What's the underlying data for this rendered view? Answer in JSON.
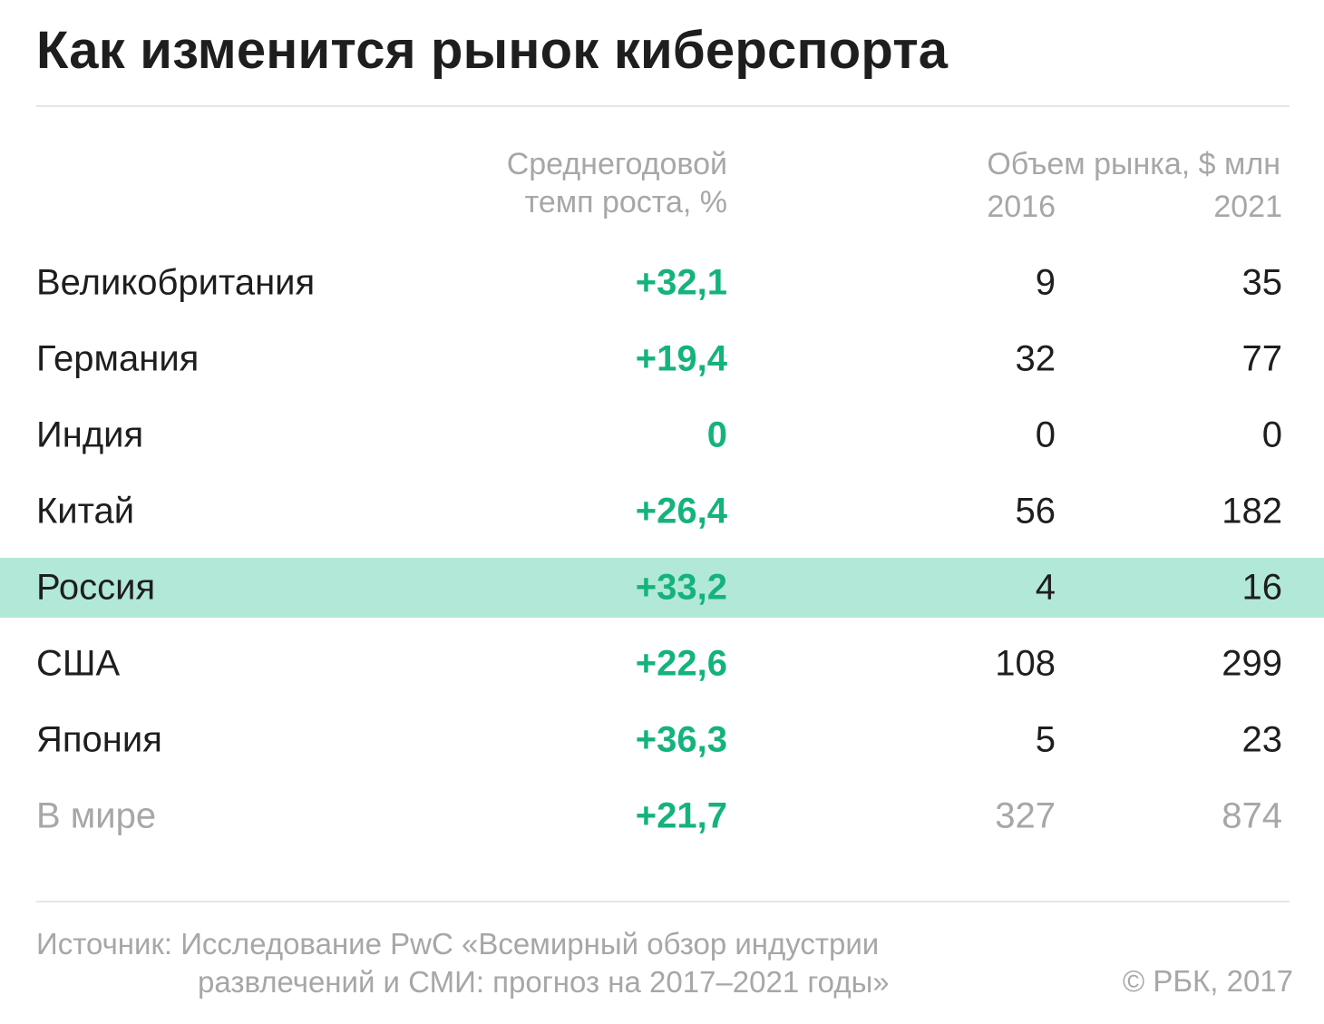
{
  "title": "Как изменится рынок киберспорта",
  "headers": {
    "growth_line1": "Среднегодовой",
    "growth_line2": "темп роста, %",
    "volume": "Объем рынка, $ млн",
    "year_a": "2016",
    "year_b": "2021"
  },
  "colors": {
    "growth_text": "#14b37d",
    "highlight_row": "#b2e8d7",
    "muted_text": "#a7a7a7",
    "main_text": "#1e1e1e"
  },
  "chart_data": {
    "type": "table",
    "title": "Как изменится рынок киберспорта",
    "columns": [
      "",
      "Среднегодовой темп роста, %",
      "2016",
      "2021"
    ],
    "rows": [
      {
        "country": "Великобритания",
        "growth": "+32,1",
        "v2016": "9",
        "v2021": "35",
        "highlight": false,
        "muted": false
      },
      {
        "country": "Германия",
        "growth": "+19,4",
        "v2016": "32",
        "v2021": "77",
        "highlight": false,
        "muted": false
      },
      {
        "country": "Индия",
        "growth": "0",
        "v2016": "0",
        "v2021": "0",
        "highlight": false,
        "muted": false
      },
      {
        "country": "Китай",
        "growth": "+26,4",
        "v2016": "56",
        "v2021": "182",
        "highlight": false,
        "muted": false
      },
      {
        "country": "Россия",
        "growth": "+33,2",
        "v2016": "4",
        "v2021": "16",
        "highlight": true,
        "muted": false
      },
      {
        "country": "США",
        "growth": "+22,6",
        "v2016": "108",
        "v2021": "299",
        "highlight": false,
        "muted": false
      },
      {
        "country": "Япония",
        "growth": "+36,3",
        "v2016": "5",
        "v2021": "23",
        "highlight": false,
        "muted": false
      },
      {
        "country": "В мире",
        "growth": "+21,7",
        "v2016": "327",
        "v2021": "874",
        "highlight": false,
        "muted": true
      }
    ]
  },
  "footer": {
    "source_line1": "Источник: Исследование PwC «Всемирный обзор индустрии",
    "source_line2": "развлечений и СМИ: прогноз на 2017–2021 годы»",
    "copyright": "© РБК, 2017"
  }
}
